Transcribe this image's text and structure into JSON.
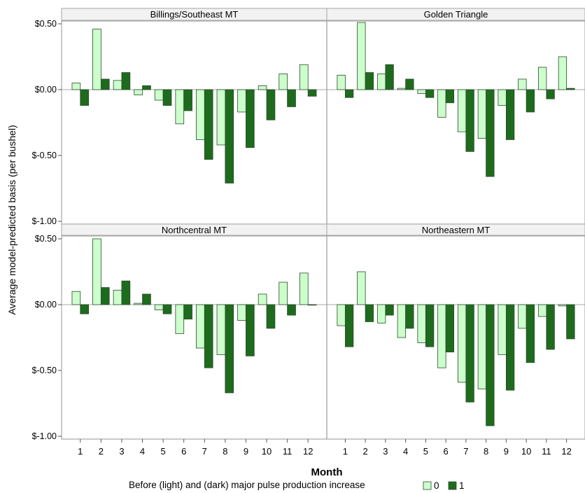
{
  "chart_data": {
    "type": "bar",
    "ylabel": "Average model-predicted basis (per bushel)",
    "xlabel": "Month",
    "categories": [
      "1",
      "2",
      "3",
      "4",
      "5",
      "6",
      "7",
      "8",
      "9",
      "10",
      "11",
      "12"
    ],
    "ylim": [
      -1.0,
      0.5
    ],
    "yticks": [
      0.5,
      0.0,
      -0.5,
      -1.0
    ],
    "ytick_labels": [
      "$0.50",
      "$0.00",
      "$-0.50",
      "$-1.00"
    ],
    "grid": false,
    "legend": {
      "title": "Before (light) and (dark) major pulse production increase",
      "placement": "bottom",
      "entries": [
        "0",
        "1"
      ]
    },
    "colors": {
      "light": "#ccffcc",
      "dark": "#1e6b1e",
      "outline": "#2a4a2a",
      "panel_border": "#a6a6a6",
      "header_bg": "#f2f2f2"
    },
    "panels": [
      {
        "title": "Billings/Southeast MT",
        "series": [
          {
            "name": "0",
            "values": [
              0.05,
              0.46,
              0.07,
              -0.04,
              -0.08,
              -0.26,
              -0.38,
              -0.42,
              -0.17,
              0.03,
              0.12,
              0.19
            ]
          },
          {
            "name": "1",
            "values": [
              -0.12,
              0.08,
              0.13,
              0.03,
              -0.12,
              -0.16,
              -0.53,
              -0.71,
              -0.44,
              -0.23,
              -0.13,
              -0.05
            ]
          }
        ]
      },
      {
        "title": "Golden Triangle",
        "series": [
          {
            "name": "0",
            "values": [
              0.11,
              0.51,
              0.12,
              0.01,
              -0.03,
              -0.21,
              -0.32,
              -0.37,
              -0.12,
              0.08,
              0.17,
              0.25
            ]
          },
          {
            "name": "1",
            "values": [
              -0.06,
              0.13,
              0.19,
              0.08,
              -0.06,
              -0.1,
              -0.47,
              -0.66,
              -0.38,
              -0.17,
              -0.07,
              0.01
            ]
          }
        ]
      },
      {
        "title": "Northcentral MT",
        "series": [
          {
            "name": "0",
            "values": [
              0.1,
              0.5,
              0.11,
              0.01,
              -0.04,
              -0.22,
              -0.33,
              -0.38,
              -0.12,
              0.08,
              0.17,
              0.24
            ]
          },
          {
            "name": "1",
            "values": [
              -0.07,
              0.13,
              0.18,
              0.08,
              -0.07,
              -0.11,
              -0.48,
              -0.67,
              -0.39,
              -0.18,
              -0.08,
              0.0
            ]
          }
        ]
      },
      {
        "title": "Northeastern MT",
        "series": [
          {
            "name": "0",
            "values": [
              -0.16,
              0.25,
              -0.14,
              -0.25,
              -0.29,
              -0.48,
              -0.59,
              -0.64,
              -0.38,
              -0.18,
              -0.09,
              -0.01
            ]
          },
          {
            "name": "1",
            "values": [
              -0.32,
              -0.13,
              -0.08,
              -0.18,
              -0.32,
              -0.36,
              -0.74,
              -0.92,
              -0.65,
              -0.44,
              -0.34,
              -0.26
            ]
          }
        ]
      }
    ]
  }
}
